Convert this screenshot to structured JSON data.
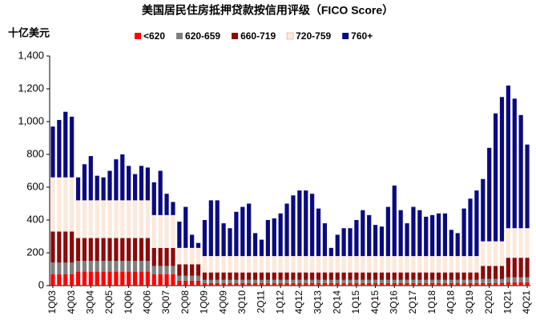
{
  "chart_data": {
    "type": "stacked_bar",
    "title": "美国居民住房抵押贷款按信用评级（FICO Score）",
    "y_label": "十亿美元",
    "categories": [
      "1Q03",
      null,
      null,
      "4Q03",
      null,
      null,
      "3Q04",
      null,
      null,
      "2Q05",
      null,
      null,
      "1Q06",
      null,
      null,
      "4Q06",
      null,
      null,
      "3Q07",
      null,
      null,
      "2Q08",
      null,
      null,
      "1Q09",
      null,
      null,
      "4Q09",
      null,
      null,
      "3Q10",
      null,
      null,
      "2Q11",
      null,
      null,
      "1Q12",
      null,
      null,
      "4Q12",
      null,
      null,
      "3Q13",
      null,
      null,
      "2Q14",
      null,
      null,
      "1Q15",
      null,
      null,
      "4Q15",
      null,
      null,
      "3Q16",
      null,
      null,
      "2Q17",
      null,
      null,
      "1Q18",
      null,
      null,
      "4Q18",
      null,
      null,
      "3Q19",
      null,
      null,
      "2Q20",
      null,
      null,
      "1Q21",
      null,
      null,
      "4Q21"
    ],
    "series": [
      {
        "name": "<620",
        "color": "#ff0000",
        "values": [
          70,
          70,
          70,
          70,
          85,
          85,
          85,
          85,
          85,
          85,
          85,
          85,
          85,
          85,
          85,
          85,
          70,
          70,
          70,
          70,
          30,
          30,
          30,
          30,
          15,
          15,
          15,
          15,
          15,
          15,
          15,
          15,
          15,
          15,
          15,
          15,
          15,
          15,
          15,
          15,
          15,
          15,
          15,
          15,
          15,
          15,
          15,
          15,
          15,
          15,
          15,
          15,
          15,
          15,
          15,
          15,
          15,
          15,
          15,
          15,
          15,
          15,
          15,
          15,
          15,
          15,
          15,
          15,
          15,
          15,
          15,
          15,
          20,
          20,
          20,
          20
        ]
      },
      {
        "name": "620-659",
        "color": "#7f7f7f",
        "values": [
          70,
          70,
          70,
          70,
          65,
          65,
          65,
          65,
          65,
          65,
          65,
          65,
          65,
          65,
          65,
          65,
          50,
          50,
          50,
          50,
          30,
          30,
          30,
          30,
          20,
          20,
          20,
          20,
          20,
          20,
          20,
          20,
          20,
          20,
          20,
          20,
          20,
          20,
          20,
          20,
          20,
          20,
          20,
          20,
          20,
          20,
          20,
          20,
          20,
          20,
          20,
          20,
          20,
          20,
          20,
          20,
          20,
          20,
          20,
          20,
          20,
          20,
          20,
          20,
          20,
          20,
          20,
          20,
          25,
          25,
          25,
          25,
          30,
          30,
          30,
          30
        ]
      },
      {
        "name": "660-719",
        "color": "#8b0a0a",
        "values": [
          190,
          190,
          190,
          190,
          140,
          140,
          140,
          140,
          140,
          140,
          140,
          140,
          140,
          140,
          140,
          140,
          110,
          110,
          110,
          110,
          70,
          70,
          70,
          70,
          45,
          45,
          45,
          45,
          45,
          45,
          45,
          45,
          45,
          45,
          45,
          45,
          45,
          45,
          45,
          45,
          45,
          45,
          45,
          45,
          45,
          45,
          45,
          45,
          45,
          45,
          45,
          45,
          45,
          45,
          45,
          45,
          45,
          45,
          45,
          45,
          45,
          45,
          45,
          45,
          45,
          45,
          45,
          45,
          80,
          80,
          80,
          80,
          120,
          120,
          120,
          120
        ]
      },
      {
        "name": "720-759",
        "color": "#fce9dc",
        "values": [
          330,
          330,
          330,
          330,
          230,
          230,
          230,
          230,
          230,
          230,
          230,
          230,
          230,
          230,
          230,
          230,
          200,
          200,
          200,
          200,
          100,
          100,
          100,
          100,
          100,
          100,
          100,
          100,
          100,
          100,
          100,
          100,
          100,
          100,
          100,
          100,
          100,
          100,
          100,
          100,
          100,
          100,
          100,
          100,
          100,
          100,
          100,
          100,
          100,
          100,
          100,
          100,
          100,
          100,
          100,
          100,
          100,
          100,
          100,
          100,
          100,
          100,
          100,
          100,
          100,
          100,
          100,
          100,
          150,
          150,
          150,
          150,
          180,
          180,
          180,
          180
        ]
      },
      {
        "name": "760+",
        "color": "#0a0a80",
        "values": [
          310,
          350,
          400,
          370,
          140,
          220,
          270,
          150,
          140,
          180,
          250,
          280,
          210,
          160,
          210,
          200,
          200,
          270,
          130,
          80,
          160,
          250,
          80,
          30,
          220,
          340,
          340,
          200,
          170,
          270,
          300,
          320,
          140,
          100,
          220,
          230,
          260,
          320,
          370,
          400,
          400,
          380,
          290,
          200,
          50,
          130,
          170,
          170,
          220,
          280,
          250,
          190,
          180,
          300,
          430,
          280,
          200,
          300,
          280,
          240,
          250,
          260,
          260,
          160,
          140,
          290,
          350,
          400,
          380,
          570,
          780,
          880,
          870,
          790,
          690,
          510
        ]
      }
    ],
    "ylim": [
      0,
      1400
    ],
    "yticks": [
      0,
      200,
      400,
      600,
      800,
      {
        "value": 1000,
        "label": "1,000"
      },
      {
        "value": 1200,
        "label": "1,200"
      },
      {
        "value": 1400,
        "label": "1,400"
      }
    ],
    "grid": false
  }
}
